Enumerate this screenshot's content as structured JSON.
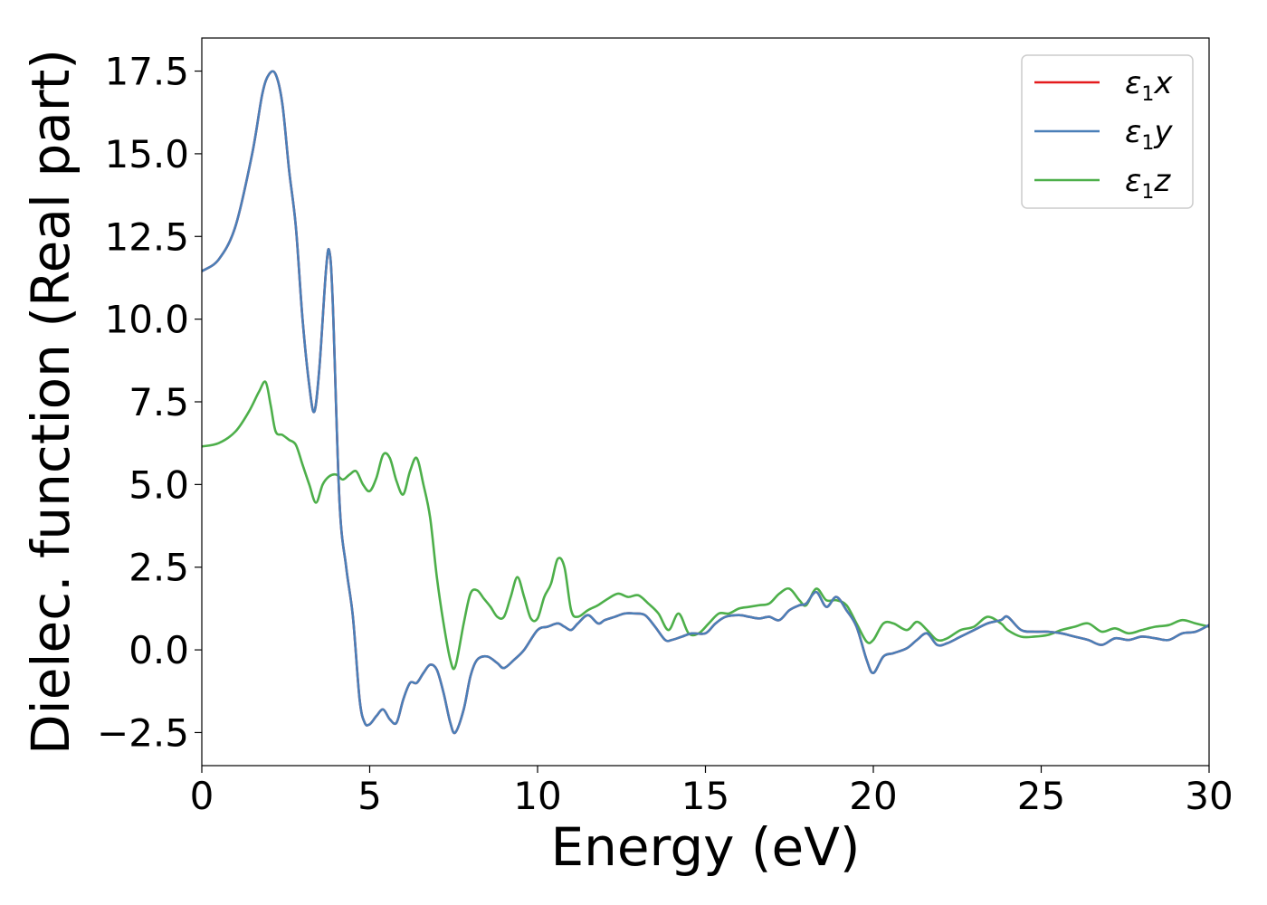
{
  "chart_data": {
    "type": "line",
    "xlabel": "Energy (eV)",
    "ylabel": "Dielec. function (Real part)",
    "xlim": [
      0,
      30
    ],
    "ylim": [
      -3.5,
      18.5
    ],
    "xticks": [
      0,
      5,
      10,
      15,
      20,
      25,
      30
    ],
    "xtick_labels": [
      "0",
      "5",
      "10",
      "15",
      "20",
      "25",
      "30"
    ],
    "yticks": [
      -2.5,
      0.0,
      2.5,
      5.0,
      7.5,
      10.0,
      12.5,
      15.0,
      17.5
    ],
    "ytick_labels": [
      "−2.5",
      "0.0",
      "2.5",
      "5.0",
      "7.5",
      "10.0",
      "12.5",
      "15.0",
      "17.5"
    ],
    "grid": false,
    "legend_position": "top-right",
    "series": [
      {
        "name": "ε₁x",
        "color": "#e41a1c",
        "x": [
          0,
          0.5,
          1,
          1.5,
          1.8,
          2,
          2.2,
          2.4,
          2.6,
          2.8,
          3,
          3.2,
          3.35,
          3.5,
          3.7,
          3.8,
          3.9,
          4.1,
          4.3,
          4.5,
          4.7,
          4.85,
          5,
          5.2,
          5.4,
          5.6,
          5.8,
          6,
          6.2,
          6.4,
          6.6,
          6.8,
          7,
          7.2,
          7.4,
          7.55,
          7.8,
          8,
          8.2,
          8.5,
          8.8,
          9,
          9.3,
          9.6,
          10,
          10.3,
          10.6,
          10.8,
          11,
          11.2,
          11.5,
          11.8,
          12,
          12.3,
          12.6,
          12.9,
          13.2,
          13.5,
          13.8,
          14,
          14.3,
          14.6,
          15,
          15.3,
          15.6,
          16,
          16.3,
          16.6,
          16.9,
          17.2,
          17.5,
          17.8,
          18,
          18.3,
          18.6,
          18.9,
          19.2,
          19.5,
          19.8,
          20,
          20.3,
          20.6,
          21,
          21.3,
          21.6,
          21.9,
          22.2,
          22.6,
          23,
          23.4,
          23.8,
          24,
          24.4,
          24.8,
          25.2,
          25.6,
          26,
          26.4,
          26.8,
          27.2,
          27.6,
          28,
          28.4,
          28.8,
          29.2,
          29.6,
          30
        ],
        "y": [
          11.45,
          11.8,
          12.8,
          15.0,
          16.8,
          17.4,
          17.4,
          16.5,
          14.5,
          12.8,
          10.0,
          8.0,
          7.2,
          8.5,
          11.5,
          12.05,
          10.5,
          4.5,
          2.5,
          1.0,
          -1.5,
          -2.2,
          -2.25,
          -2.0,
          -1.8,
          -2.1,
          -2.2,
          -1.5,
          -1.0,
          -1.0,
          -0.7,
          -0.45,
          -0.6,
          -1.3,
          -2.2,
          -2.5,
          -1.8,
          -0.8,
          -0.3,
          -0.2,
          -0.4,
          -0.55,
          -0.3,
          0.0,
          0.6,
          0.7,
          0.8,
          0.7,
          0.6,
          0.8,
          1.05,
          0.8,
          0.9,
          1.0,
          1.1,
          1.1,
          1.05,
          0.7,
          0.3,
          0.3,
          0.4,
          0.5,
          0.5,
          0.8,
          1.0,
          1.05,
          1.0,
          0.95,
          1.0,
          0.9,
          1.2,
          1.35,
          1.4,
          1.75,
          1.3,
          1.6,
          1.2,
          0.7,
          -0.3,
          -0.7,
          -0.2,
          -0.1,
          0.05,
          0.3,
          0.5,
          0.15,
          0.2,
          0.4,
          0.6,
          0.8,
          0.9,
          1.0,
          0.6,
          0.55,
          0.55,
          0.5,
          0.4,
          0.3,
          0.15,
          0.35,
          0.3,
          0.4,
          0.35,
          0.3,
          0.5,
          0.55,
          0.75
        ]
      },
      {
        "name": "ε₁y",
        "color": "#4a7fb8",
        "x": [
          0,
          0.5,
          1,
          1.5,
          1.8,
          2,
          2.2,
          2.4,
          2.6,
          2.8,
          3,
          3.2,
          3.35,
          3.5,
          3.7,
          3.8,
          3.9,
          4.1,
          4.3,
          4.5,
          4.7,
          4.85,
          5,
          5.2,
          5.4,
          5.6,
          5.8,
          6,
          6.2,
          6.4,
          6.6,
          6.8,
          7,
          7.2,
          7.4,
          7.55,
          7.8,
          8,
          8.2,
          8.5,
          8.8,
          9,
          9.3,
          9.6,
          10,
          10.3,
          10.6,
          10.8,
          11,
          11.2,
          11.5,
          11.8,
          12,
          12.3,
          12.6,
          12.9,
          13.2,
          13.5,
          13.8,
          14,
          14.3,
          14.6,
          15,
          15.3,
          15.6,
          16,
          16.3,
          16.6,
          16.9,
          17.2,
          17.5,
          17.8,
          18,
          18.3,
          18.6,
          18.9,
          19.2,
          19.5,
          19.8,
          20,
          20.3,
          20.6,
          21,
          21.3,
          21.6,
          21.9,
          22.2,
          22.6,
          23,
          23.4,
          23.8,
          24,
          24.4,
          24.8,
          25.2,
          25.6,
          26,
          26.4,
          26.8,
          27.2,
          27.6,
          28,
          28.4,
          28.8,
          29.2,
          29.6,
          30
        ],
        "y": [
          11.45,
          11.8,
          12.8,
          15.0,
          16.8,
          17.4,
          17.4,
          16.5,
          14.5,
          12.8,
          10.0,
          8.0,
          7.2,
          8.5,
          11.5,
          12.05,
          10.5,
          4.5,
          2.5,
          1.0,
          -1.5,
          -2.2,
          -2.25,
          -2.0,
          -1.8,
          -2.1,
          -2.2,
          -1.5,
          -1.0,
          -1.0,
          -0.7,
          -0.45,
          -0.6,
          -1.3,
          -2.2,
          -2.5,
          -1.8,
          -0.8,
          -0.3,
          -0.2,
          -0.4,
          -0.55,
          -0.3,
          0.0,
          0.6,
          0.7,
          0.8,
          0.7,
          0.6,
          0.8,
          1.05,
          0.8,
          0.9,
          1.0,
          1.1,
          1.1,
          1.05,
          0.7,
          0.3,
          0.3,
          0.4,
          0.5,
          0.5,
          0.8,
          1.0,
          1.05,
          1.0,
          0.95,
          1.0,
          0.9,
          1.2,
          1.35,
          1.4,
          1.75,
          1.3,
          1.6,
          1.2,
          0.7,
          -0.3,
          -0.7,
          -0.2,
          -0.1,
          0.05,
          0.3,
          0.5,
          0.15,
          0.2,
          0.4,
          0.6,
          0.8,
          0.9,
          1.0,
          0.6,
          0.55,
          0.55,
          0.5,
          0.4,
          0.3,
          0.15,
          0.35,
          0.3,
          0.4,
          0.35,
          0.3,
          0.5,
          0.55,
          0.75
        ]
      },
      {
        "name": "ε₁z",
        "color": "#4daf4a",
        "x": [
          0,
          0.5,
          1,
          1.4,
          1.7,
          1.9,
          2.05,
          2.2,
          2.4,
          2.6,
          2.8,
          3,
          3.2,
          3.4,
          3.6,
          3.8,
          4,
          4.2,
          4.4,
          4.6,
          4.8,
          5,
          5.2,
          5.4,
          5.6,
          5.8,
          6,
          6.2,
          6.4,
          6.6,
          6.8,
          7,
          7.2,
          7.4,
          7.55,
          7.8,
          8,
          8.2,
          8.4,
          8.6,
          8.8,
          9,
          9.2,
          9.4,
          9.6,
          9.8,
          10,
          10.2,
          10.4,
          10.6,
          10.8,
          11,
          11.2,
          11.5,
          11.8,
          12.1,
          12.4,
          12.7,
          13,
          13.3,
          13.6,
          13.9,
          14.2,
          14.5,
          14.8,
          15.1,
          15.4,
          15.7,
          16,
          16.3,
          16.6,
          16.9,
          17.2,
          17.5,
          17.8,
          18,
          18.3,
          18.6,
          18.9,
          19.2,
          19.5,
          19.8,
          20,
          20.3,
          20.6,
          21,
          21.3,
          21.6,
          21.9,
          22.2,
          22.6,
          23,
          23.4,
          23.8,
          24,
          24.4,
          24.8,
          25.2,
          25.6,
          26,
          26.4,
          26.8,
          27.2,
          27.6,
          28,
          28.4,
          28.8,
          29.2,
          29.6,
          30
        ],
        "y": [
          6.15,
          6.25,
          6.6,
          7.2,
          7.8,
          8.1,
          7.4,
          6.6,
          6.5,
          6.35,
          6.2,
          5.6,
          5.0,
          4.45,
          5.0,
          5.25,
          5.3,
          5.15,
          5.3,
          5.4,
          5.0,
          4.8,
          5.2,
          5.9,
          5.8,
          5.1,
          4.7,
          5.4,
          5.8,
          5.0,
          4.0,
          2.2,
          0.8,
          -0.3,
          -0.5,
          0.8,
          1.7,
          1.8,
          1.55,
          1.3,
          1.0,
          1.0,
          1.6,
          2.2,
          1.6,
          0.95,
          0.95,
          1.6,
          2.0,
          2.75,
          2.5,
          1.2,
          1.0,
          1.2,
          1.35,
          1.55,
          1.7,
          1.6,
          1.65,
          1.4,
          1.1,
          0.6,
          1.1,
          0.5,
          0.5,
          0.8,
          1.1,
          1.1,
          1.25,
          1.3,
          1.35,
          1.4,
          1.7,
          1.85,
          1.5,
          1.35,
          1.85,
          1.5,
          1.5,
          1.35,
          0.8,
          0.25,
          0.3,
          0.8,
          0.8,
          0.6,
          0.85,
          0.6,
          0.3,
          0.35,
          0.6,
          0.7,
          1.0,
          0.8,
          0.6,
          0.4,
          0.4,
          0.45,
          0.6,
          0.7,
          0.8,
          0.55,
          0.65,
          0.5,
          0.6,
          0.7,
          0.75,
          0.9,
          0.8,
          0.7
        ]
      }
    ]
  }
}
